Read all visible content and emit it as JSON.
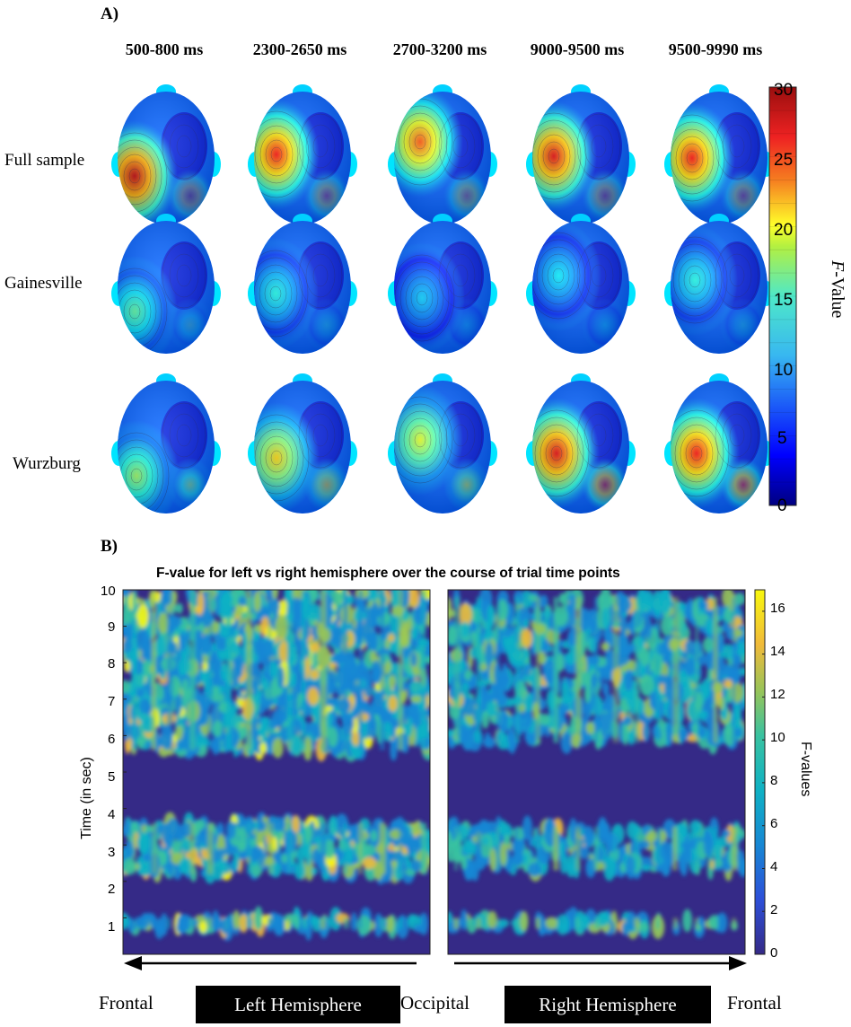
{
  "panel_a": {
    "label": "A)",
    "columns": [
      "500-800 ms",
      "2300-2650 ms",
      "2700-3200 ms",
      "9000-9500 ms",
      "9500-9990 ms"
    ],
    "rows": [
      "Full sample",
      "Gainesville",
      "Wurzburg"
    ],
    "colorbar": {
      "title_italic": "F",
      "title_rest": "-Value",
      "ticks": [
        "30",
        "25",
        "20",
        "15",
        "10",
        "5",
        "0"
      ]
    }
  },
  "panel_b": {
    "label": "B)",
    "bottom_labels": {
      "frontal_left": "Frontal",
      "left_hemisphere": "Left Hemisphere",
      "occipital": "Occipital",
      "right_hemisphere": "Right Hemisphere",
      "frontal_right": "Frontal"
    }
  },
  "chart_data": [
    {
      "type": "heatmap",
      "title": "",
      "rows": [
        "Full sample",
        "Gainesville",
        "Wurzburg"
      ],
      "columns": [
        "500-800 ms",
        "2300-2650 ms",
        "2700-3200 ms",
        "9000-9500 ms",
        "9500-9990 ms"
      ],
      "colorbar_range": [
        0,
        30
      ],
      "colorbar_ticks": [
        0,
        5,
        10,
        15,
        20,
        25,
        30
      ],
      "hotspot_peak_f": [
        [
          28,
          26,
          24,
          27,
          26
        ],
        [
          14,
          12,
          10,
          11,
          12
        ],
        [
          16,
          20,
          18,
          27,
          26
        ]
      ]
    },
    {
      "type": "heatmap",
      "title": "F-value for left vs right hemisphere over the course of trial time points",
      "ylabel": "Time (in sec)",
      "colorbar_label": "F-values",
      "ylim": [
        0,
        10
      ],
      "y_ticks": [
        "1",
        "2",
        "3",
        "4",
        "5",
        "6",
        "7",
        "8",
        "9",
        "10"
      ],
      "colorbar_range": [
        0,
        17
      ],
      "colorbar_ticks": [
        "0",
        "2",
        "4",
        "6",
        "8",
        "10",
        "12",
        "14",
        "16"
      ],
      "left_hemisphere_high_f_times": [
        [
          0.7,
          1.0
        ],
        [
          2.2,
          3.6
        ],
        [
          5.6,
          10.0
        ]
      ],
      "right_hemisphere_high_f_times": [
        [
          0.7,
          1.0
        ],
        [
          2.3,
          3.5
        ],
        [
          5.8,
          9.8
        ]
      ],
      "low_f_band": [
        4.0,
        5.5
      ]
    }
  ]
}
